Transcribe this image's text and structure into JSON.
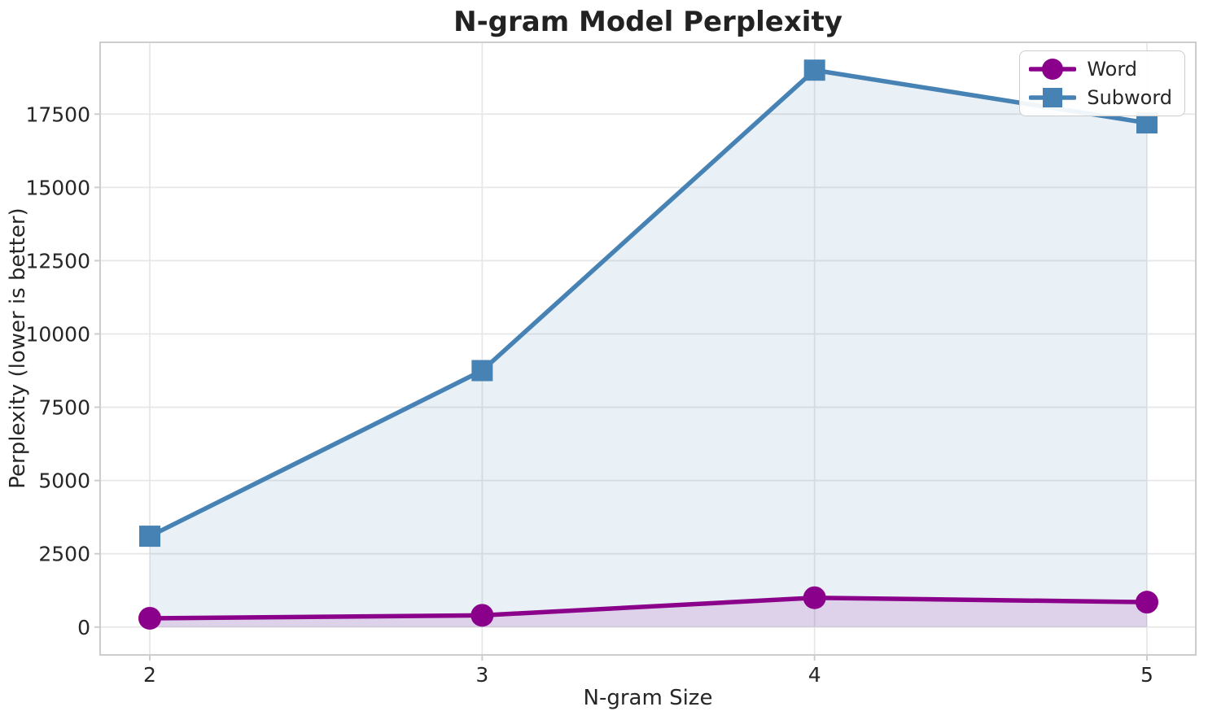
{
  "chart_data": {
    "type": "line",
    "title": "N-gram Model Perplexity",
    "xlabel": "N-gram Size",
    "ylabel": "Perplexity (lower is better)",
    "x": [
      2,
      3,
      4,
      5
    ],
    "series": [
      {
        "name": "Word",
        "color": "#8B008B",
        "marker": "circle",
        "values": [
          300,
          400,
          1000,
          850
        ]
      },
      {
        "name": "Subword",
        "color": "#4682B4",
        "marker": "square",
        "values": [
          3100,
          8750,
          19000,
          17200
        ]
      }
    ],
    "yticks": [
      0,
      2500,
      5000,
      7500,
      10000,
      12500,
      15000,
      17500
    ],
    "ylim": [
      -950,
      19950
    ],
    "xlim": [
      1.8506,
      5.1469
    ],
    "fill": "to_zero",
    "fill_alpha": 0.12,
    "grid": true,
    "legend_position": "upper right",
    "colors": {
      "text": "#262626",
      "grid": "#e7e7e7",
      "spine": "#cdcdcd",
      "background": "#ffffff"
    }
  }
}
